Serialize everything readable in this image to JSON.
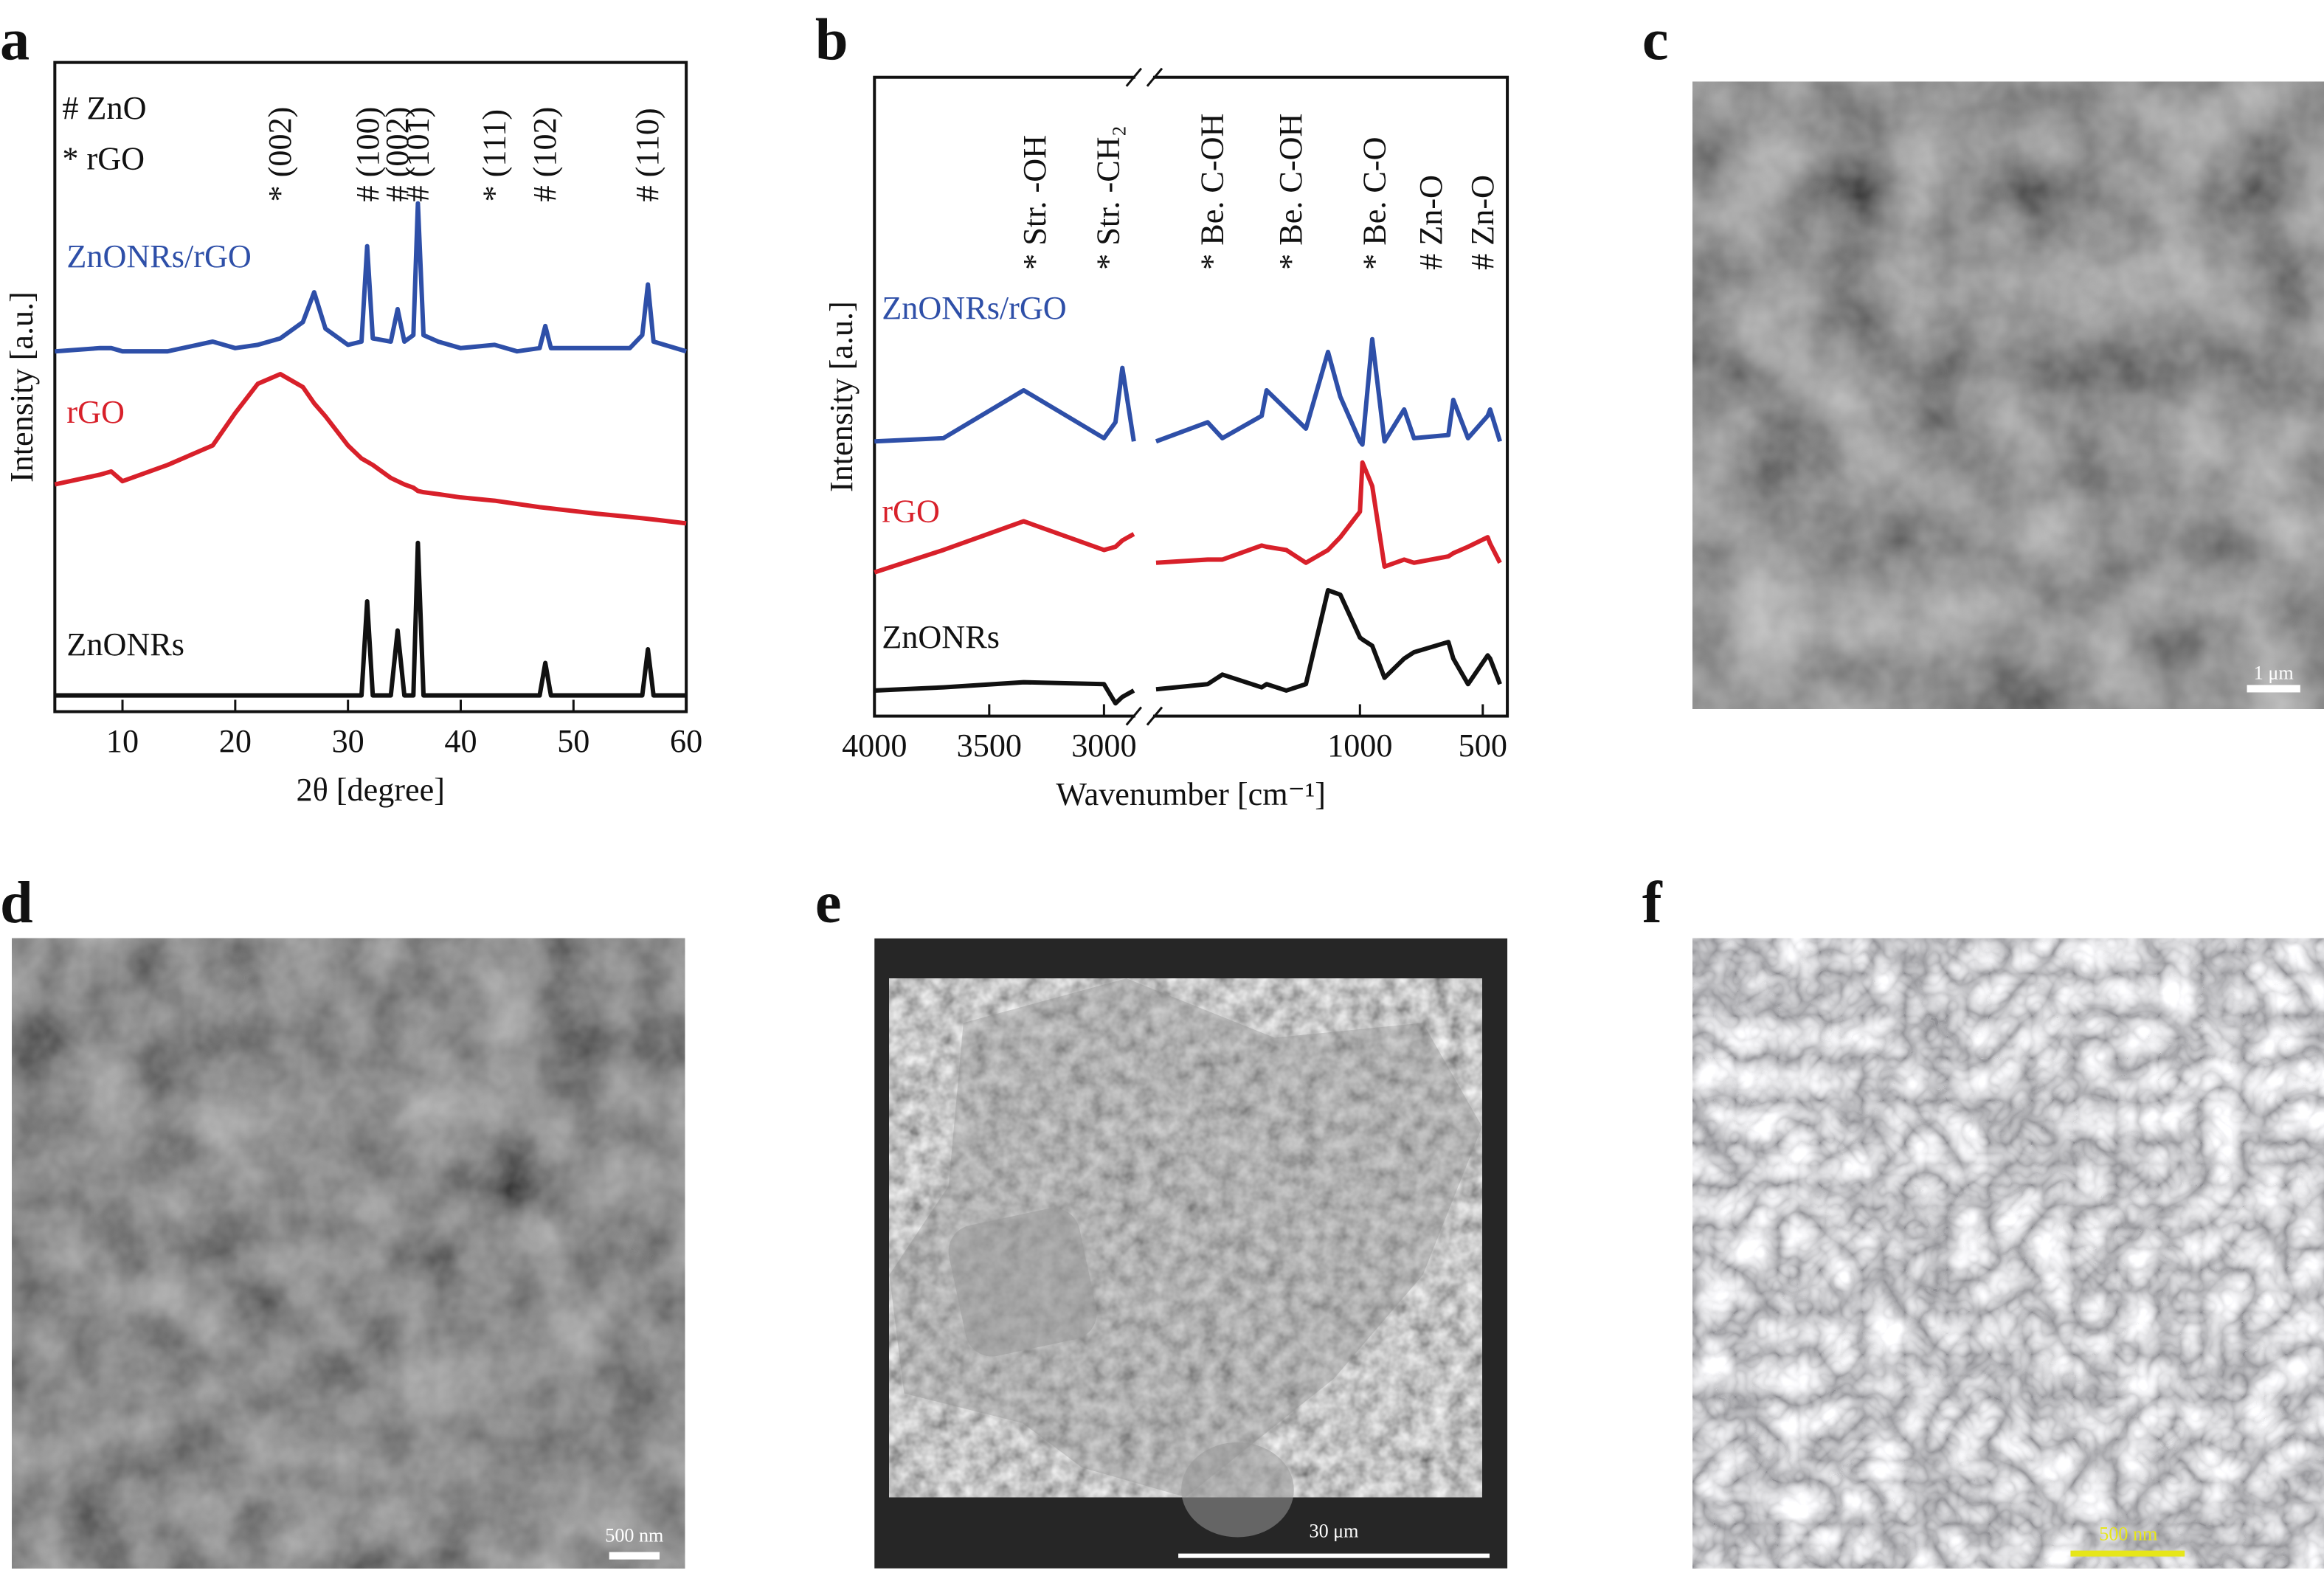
{
  "chart_data": [
    {
      "type": "line",
      "panel_label": "a",
      "x_label": "2θ [degree]",
      "y_label": "Intensity [a.u.]",
      "xlim": [
        4,
        60
      ],
      "xticks": [
        10,
        20,
        30,
        40,
        50,
        60
      ],
      "ylim": [
        0,
        100
      ],
      "notes": [
        "# ZnO",
        "* rGO"
      ],
      "annotations": [
        {
          "text": "* (002)",
          "x": 24
        },
        {
          "text": "# (100)",
          "x": 31.8
        },
        {
          "text": "# (002)",
          "x": 34.4
        },
        {
          "text": "# (101)",
          "x": 36.2
        },
        {
          "text": "* (111)",
          "x": 43
        },
        {
          "text": "# (102)",
          "x": 47.5
        },
        {
          "text": "# (110)",
          "x": 56.6
        }
      ],
      "x": [
        4,
        8,
        9,
        10,
        14,
        18,
        20,
        22,
        24,
        26,
        27,
        28,
        30,
        31.2,
        31.7,
        32.2,
        33.8,
        34.4,
        35,
        35.8,
        36.2,
        36.7,
        38,
        40,
        43,
        45,
        47,
        47.5,
        48,
        52,
        55,
        56.1,
        56.6,
        57.1,
        60
      ],
      "series": [
        {
          "name": "ZnONRs/rGO",
          "color": "#2e4fa8",
          "values": [
            55.5,
            56,
            56,
            55.5,
            55.5,
            57,
            56,
            56.5,
            57.5,
            60,
            64.6,
            59,
            56.5,
            57,
            71.7,
            57.5,
            57,
            62,
            57,
            58,
            78.3,
            58,
            57,
            56,
            56.5,
            55.5,
            56,
            59.4,
            56,
            56,
            56,
            58,
            65.8,
            57,
            55.5
          ]
        },
        {
          "name": "rGO",
          "color": "#d8202a",
          "values": [
            35,
            36.5,
            37,
            35.5,
            38,
            41,
            46,
            50.5,
            52,
            50,
            47.5,
            45.5,
            41,
            39,
            38.5,
            38,
            36,
            35.5,
            35,
            34.5,
            34,
            33.8,
            33.5,
            33,
            32.5,
            32,
            31.5,
            31.4,
            31.3,
            30.5,
            30,
            29.8,
            29.7,
            29.6,
            29
          ]
        },
        {
          "name": "ZnONRs",
          "color": "#111111",
          "values": [
            2.5,
            2.5,
            2.5,
            2.5,
            2.5,
            2.5,
            2.5,
            2.5,
            2.5,
            2.5,
            2.5,
            2.5,
            2.5,
            2.5,
            17,
            2.5,
            2.5,
            12.5,
            2.5,
            2.5,
            26,
            2.5,
            2.5,
            2.5,
            2.5,
            2.5,
            2.5,
            7.5,
            2.5,
            2.5,
            2.5,
            2.5,
            9.6,
            2.5,
            2.5
          ]
        }
      ]
    },
    {
      "type": "line",
      "panel_label": "b",
      "x_label": "Wavenumber [cm⁻¹]",
      "y_label": "Intensity [a.u.]",
      "xlim": [
        4000,
        400
      ],
      "x_break": [
        2870,
        1830
      ],
      "xticks": [
        4000,
        3500,
        3000,
        1000,
        500
      ],
      "ylim": [
        0,
        100
      ],
      "annotations": [
        {
          "text": "* Str. -OH",
          "x": 3300
        },
        {
          "text": "* Str. -CH₂",
          "x": 2980
        },
        {
          "text": "* Be. C-OH",
          "x": 1600
        },
        {
          "text": "* Be. C-OH",
          "x": 1280
        },
        {
          "text": "* Be. C-O",
          "x": 940
        },
        {
          "text": "# Zn-O",
          "x": 710
        },
        {
          "text": "# Zn-O",
          "x": 500
        }
      ],
      "x": [
        4000,
        3700,
        3350,
        3000,
        2950,
        2920,
        2870,
        2400,
        1830,
        1620,
        1560,
        1400,
        1380,
        1300,
        1220,
        1130,
        1080,
        1000,
        990,
        950,
        900,
        820,
        780,
        640,
        620,
        560,
        480,
        470,
        430
      ],
      "series": [
        {
          "name": "ZnONRs/rGO",
          "color": "#2e4fa8",
          "values": [
            43,
            43.5,
            51,
            43.5,
            46,
            54.5,
            43,
            null,
            43,
            46,
            43.5,
            47,
            51,
            48,
            45,
            57,
            50,
            43,
            42.5,
            59,
            43,
            48,
            43.5,
            44,
            49.5,
            43.5,
            47,
            48,
            43
          ]
        },
        {
          "name": "rGO",
          "color": "#d8202a",
          "values": [
            22.5,
            26,
            30.5,
            26,
            26.5,
            27.5,
            28.5,
            null,
            24,
            24.5,
            24.5,
            26.7,
            26.5,
            26,
            24,
            26,
            28,
            32,
            39.7,
            36,
            23.4,
            24.5,
            24,
            25,
            25.5,
            26.5,
            28,
            27,
            24
          ]
        },
        {
          "name": "ZnONRs",
          "color": "#111111",
          "values": [
            4,
            4.5,
            5.3,
            5,
            2,
            3,
            4,
            null,
            4.2,
            5,
            6.5,
            4.5,
            5,
            4,
            5,
            19.7,
            19,
            12.3,
            12,
            11,
            6,
            9,
            10,
            11.6,
            9,
            5,
            9.5,
            9,
            5
          ]
        }
      ]
    }
  ],
  "images": [
    {
      "panel_label": "c",
      "scale_bar": "1 μm"
    },
    {
      "panel_label": "d",
      "scale_bar": "500 nm"
    },
    {
      "panel_label": "e",
      "scale_bar": "30 μm"
    },
    {
      "panel_label": "f",
      "scale_bar": "500 nm"
    }
  ]
}
